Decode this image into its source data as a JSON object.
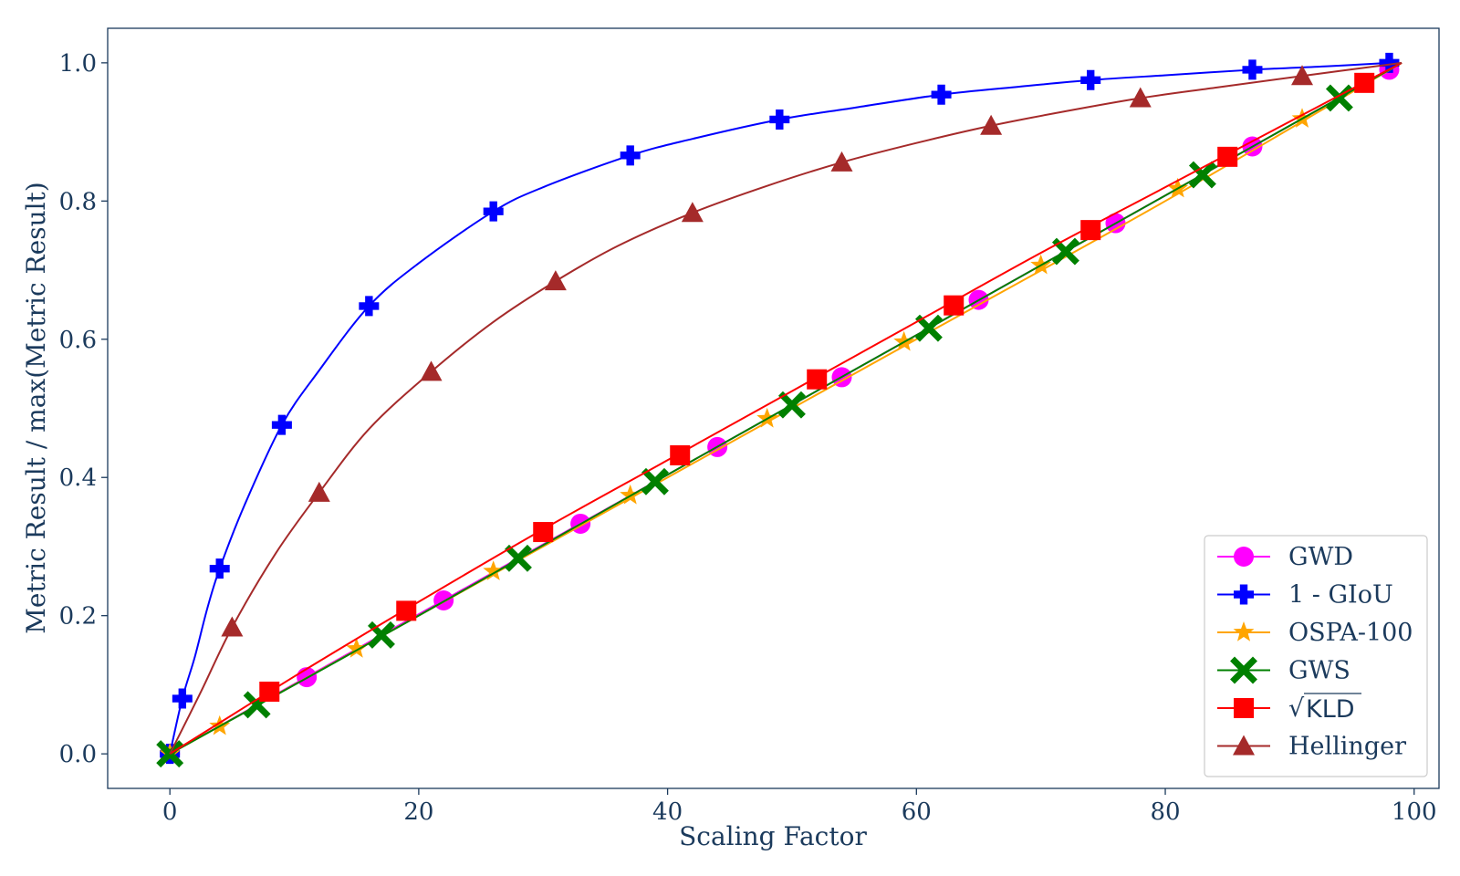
{
  "chart_data": {
    "type": "line",
    "title": "",
    "xlabel": "Scaling Factor",
    "ylabel": "Metric Result / max(Metric Result)",
    "xlim": [
      -5,
      102
    ],
    "ylim": [
      -0.05,
      1.05
    ],
    "xticks": [
      0,
      20,
      40,
      60,
      80,
      100
    ],
    "xtick_labels": [
      "0",
      "20",
      "40",
      "60",
      "80",
      "100"
    ],
    "yticks": [
      0.0,
      0.2,
      0.4,
      0.6,
      0.8,
      1.0
    ],
    "ytick_labels": [
      "0.0",
      "0.2",
      "0.4",
      "0.6",
      "0.8",
      "1.0"
    ],
    "grid": false,
    "legend_position": "bottom-right",
    "series": [
      {
        "name": "GWD",
        "legend_label": "GWD",
        "color": "#ff00ff",
        "marker": "circle",
        "line": [
          [
            0,
            0.0
          ],
          [
            10,
            0.101
          ],
          [
            20,
            0.202
          ],
          [
            30,
            0.303
          ],
          [
            40,
            0.404
          ],
          [
            50,
            0.505
          ],
          [
            60,
            0.606
          ],
          [
            70,
            0.707
          ],
          [
            80,
            0.808
          ],
          [
            90,
            0.909
          ],
          [
            99,
            1.0
          ]
        ],
        "markers": [
          [
            0,
            0.0
          ],
          [
            11,
            0.111
          ],
          [
            22,
            0.222
          ],
          [
            33,
            0.333
          ],
          [
            44,
            0.444
          ],
          [
            54,
            0.545
          ],
          [
            65,
            0.657
          ],
          [
            76,
            0.768
          ],
          [
            87,
            0.879
          ],
          [
            98,
            0.99
          ]
        ]
      },
      {
        "name": "1 - GIoU",
        "legend_label": "1 - GIoU",
        "color": "#0000ff",
        "marker": "plus",
        "line": [
          [
            0,
            0.0
          ],
          [
            1,
            0.08
          ],
          [
            2,
            0.14
          ],
          [
            3,
            0.21
          ],
          [
            4,
            0.268
          ],
          [
            6,
            0.36
          ],
          [
            9,
            0.476
          ],
          [
            12,
            0.555
          ],
          [
            16,
            0.648
          ],
          [
            20,
            0.71
          ],
          [
            26,
            0.785
          ],
          [
            30,
            0.82
          ],
          [
            37,
            0.866
          ],
          [
            42,
            0.89
          ],
          [
            49,
            0.918
          ],
          [
            55,
            0.935
          ],
          [
            62,
            0.954
          ],
          [
            68,
            0.965
          ],
          [
            74,
            0.975
          ],
          [
            80,
            0.982
          ],
          [
            87,
            0.99
          ],
          [
            93,
            0.995
          ],
          [
            98,
            1.0
          ]
        ],
        "markers": [
          [
            0,
            0.0
          ],
          [
            1,
            0.08
          ],
          [
            4,
            0.268
          ],
          [
            9,
            0.476
          ],
          [
            16,
            0.648
          ],
          [
            26,
            0.785
          ],
          [
            37,
            0.866
          ],
          [
            49,
            0.918
          ],
          [
            62,
            0.954
          ],
          [
            74,
            0.975
          ],
          [
            87,
            0.99
          ],
          [
            98,
            1.0
          ]
        ]
      },
      {
        "name": "OSPA-100",
        "legend_label": "OSPA-100",
        "color": "#ffa500",
        "marker": "star",
        "line": [
          [
            0,
            0.0
          ],
          [
            20,
            0.2
          ],
          [
            40,
            0.4
          ],
          [
            60,
            0.6
          ],
          [
            80,
            0.8
          ],
          [
            99,
            1.0
          ]
        ],
        "markers": [
          [
            0,
            0.0
          ],
          [
            4,
            0.04
          ],
          [
            15,
            0.152
          ],
          [
            26,
            0.264
          ],
          [
            37,
            0.374
          ],
          [
            48,
            0.485
          ],
          [
            59,
            0.596
          ],
          [
            70,
            0.707
          ],
          [
            81,
            0.818
          ],
          [
            91,
            0.919
          ]
        ]
      },
      {
        "name": "GWS",
        "legend_label": "GWS",
        "color": "#008000",
        "marker": "x",
        "line": [
          [
            0,
            0.0
          ],
          [
            20,
            0.2
          ],
          [
            40,
            0.404
          ],
          [
            60,
            0.606
          ],
          [
            80,
            0.808
          ],
          [
            99,
            1.0
          ]
        ],
        "markers": [
          [
            0,
            0.0
          ],
          [
            7,
            0.071
          ],
          [
            17,
            0.172
          ],
          [
            28,
            0.283
          ],
          [
            39,
            0.394
          ],
          [
            50,
            0.505
          ],
          [
            61,
            0.616
          ],
          [
            72,
            0.727
          ],
          [
            83,
            0.838
          ],
          [
            94,
            0.949
          ]
        ]
      },
      {
        "name": "sqrt KLD",
        "legend_label": "KLD",
        "legend_prefix": "√",
        "color": "#ff0000",
        "marker": "square",
        "line": [
          [
            0,
            0.0
          ],
          [
            10,
            0.112
          ],
          [
            20,
            0.22
          ],
          [
            30,
            0.325
          ],
          [
            40,
            0.425
          ],
          [
            50,
            0.525
          ],
          [
            60,
            0.625
          ],
          [
            70,
            0.725
          ],
          [
            80,
            0.82
          ],
          [
            90,
            0.915
          ],
          [
            99,
            1.0
          ]
        ],
        "markers": [
          [
            8,
            0.09
          ],
          [
            19,
            0.207
          ],
          [
            30,
            0.321
          ],
          [
            41,
            0.432
          ],
          [
            52,
            0.542
          ],
          [
            63,
            0.649
          ],
          [
            74,
            0.758
          ],
          [
            85,
            0.864
          ],
          [
            96,
            0.971
          ]
        ]
      },
      {
        "name": "Hellinger",
        "legend_label": "Hellinger",
        "color": "#a52a2a",
        "marker": "triangle",
        "line": [
          [
            0,
            0.0
          ],
          [
            2.5,
            0.09
          ],
          [
            5,
            0.183
          ],
          [
            8.5,
            0.29
          ],
          [
            12,
            0.378
          ],
          [
            16,
            0.47
          ],
          [
            21,
            0.553
          ],
          [
            26,
            0.625
          ],
          [
            31,
            0.684
          ],
          [
            36,
            0.735
          ],
          [
            42,
            0.783
          ],
          [
            48,
            0.822
          ],
          [
            54,
            0.856
          ],
          [
            60,
            0.884
          ],
          [
            66,
            0.909
          ],
          [
            72,
            0.93
          ],
          [
            78,
            0.949
          ],
          [
            84,
            0.964
          ],
          [
            91,
            0.981
          ],
          [
            99,
            1.0
          ]
        ],
        "markers": [
          [
            5,
            0.183
          ],
          [
            12,
            0.378
          ],
          [
            21,
            0.553
          ],
          [
            31,
            0.684
          ],
          [
            42,
            0.783
          ],
          [
            54,
            0.856
          ],
          [
            66,
            0.909
          ],
          [
            78,
            0.949
          ],
          [
            91,
            0.981
          ]
        ]
      }
    ]
  }
}
